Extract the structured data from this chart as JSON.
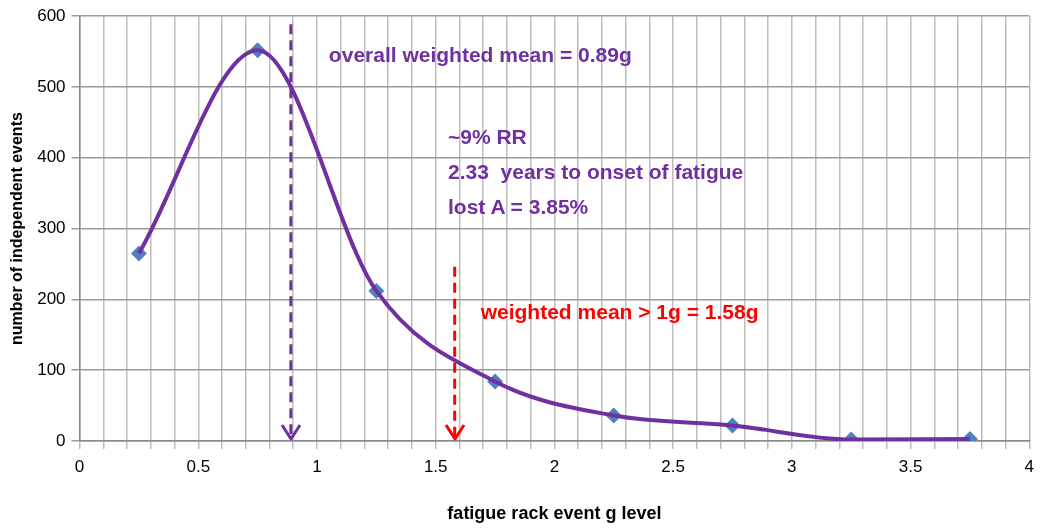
{
  "chart_data": {
    "type": "line",
    "xlabel": "fatigue rack event g level",
    "ylabel": "number of independent events",
    "x": [
      0.25,
      0.75,
      1.25,
      1.75,
      2.25,
      2.75,
      3.25,
      3.75
    ],
    "series": [
      {
        "type": "line",
        "color": "#7030a0",
        "marker": "none",
        "values": [
          265,
          552,
          212,
          84,
          36,
          22,
          2,
          3
        ]
      },
      {
        "type": "scatter",
        "color": "#4f81bd",
        "marker": "diamond",
        "values": [
          265,
          552,
          212,
          84,
          36,
          22,
          2,
          3
        ]
      }
    ],
    "xlim": [
      0,
      4
    ],
    "ylim": [
      0,
      600
    ],
    "xticks": [
      0,
      {
        "value": 0.1,
        "label": null
      },
      {
        "value": 0.2,
        "label": null
      },
      {
        "value": 0.3,
        "label": null
      },
      {
        "value": 0.4,
        "label": null
      },
      0.5,
      {
        "value": 0.6,
        "label": null
      },
      {
        "value": 0.7,
        "label": null
      },
      {
        "value": 0.8,
        "label": null
      },
      {
        "value": 0.9,
        "label": null
      },
      1,
      {
        "value": 1.1,
        "label": null
      },
      {
        "value": 1.2,
        "label": null
      },
      {
        "value": 1.3,
        "label": null
      },
      {
        "value": 1.4,
        "label": null
      },
      1.5,
      {
        "value": 1.6,
        "label": null
      },
      {
        "value": 1.7,
        "label": null
      },
      {
        "value": 1.8,
        "label": null
      },
      {
        "value": 1.9,
        "label": null
      },
      2,
      {
        "value": 2.1,
        "label": null
      },
      {
        "value": 2.2,
        "label": null
      },
      {
        "value": 2.3,
        "label": null
      },
      {
        "value": 2.4,
        "label": null
      },
      2.5,
      {
        "value": 2.6,
        "label": null
      },
      {
        "value": 2.7,
        "label": null
      },
      {
        "value": 2.8,
        "label": null
      },
      {
        "value": 2.9,
        "label": null
      },
      3,
      {
        "value": 3.1,
        "label": null
      },
      {
        "value": 3.2,
        "label": null
      },
      {
        "value": 3.3,
        "label": null
      },
      {
        "value": 3.4,
        "label": null
      },
      3.5,
      {
        "value": 3.6,
        "label": null
      },
      {
        "value": 3.7,
        "label": null
      },
      {
        "value": 3.8,
        "label": null
      },
      {
        "value": 3.9,
        "label": null
      },
      4
    ],
    "yticks": [
      0,
      100,
      200,
      300,
      400,
      500,
      600
    ],
    "grid": true,
    "legend": false,
    "ref_lines": [
      {
        "axis": "x",
        "value": 0.89,
        "label": "overall weighted mean = 0.89g",
        "color": "#7030a0",
        "line_style": "dashed"
      },
      {
        "axis": "x",
        "value": 1.58,
        "label": "weighted mean > 1g = 1.58g",
        "color": "#ff0000",
        "line_style": "dashed"
      }
    ],
    "annotations": [
      "~9% RR",
      "2.33  years to onset of fatigue",
      "lost A = 3.85%"
    ]
  }
}
